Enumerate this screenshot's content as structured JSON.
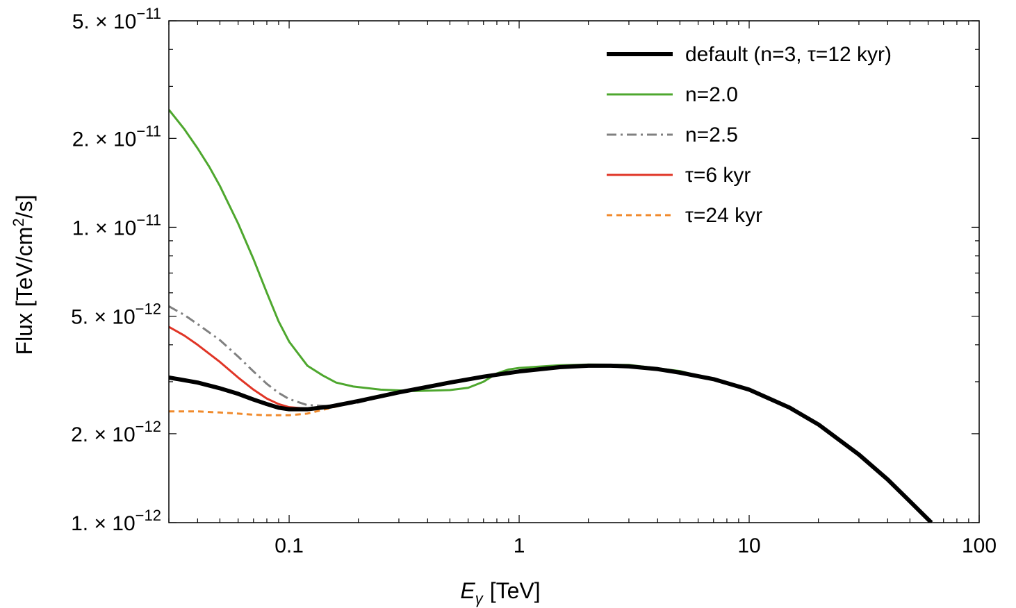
{
  "chart_data": {
    "type": "line",
    "title": "",
    "xscale": "log",
    "yscale": "log",
    "xlabel": {
      "main": "E",
      "sub": "γ",
      "unit": "[TeV]"
    },
    "ylabel": {
      "pre": "Flux [TeV/cm",
      "sup": "2",
      "post": "/s]"
    },
    "xlim": [
      0.03,
      100
    ],
    "ylim": [
      1e-12,
      5e-11
    ],
    "x_ticks": [
      {
        "value": 0.1,
        "label": "0.1"
      },
      {
        "value": 1,
        "label": "1"
      },
      {
        "value": 10,
        "label": "10"
      },
      {
        "value": 100,
        "label": "100"
      }
    ],
    "y_ticks": [
      {
        "value": 1e-12,
        "mantissa": "1.",
        "times": "×",
        "base": "10",
        "exp": "−12"
      },
      {
        "value": 2e-12,
        "mantissa": "2.",
        "times": "×",
        "base": "10",
        "exp": "−12"
      },
      {
        "value": 5e-12,
        "mantissa": "5.",
        "times": "×",
        "base": "10",
        "exp": "−12"
      },
      {
        "value": 1e-11,
        "mantissa": "1.",
        "times": "×",
        "base": "10",
        "exp": "−11"
      },
      {
        "value": 2e-11,
        "mantissa": "2.",
        "times": "×",
        "base": "10",
        "exp": "−11"
      },
      {
        "value": 5e-11,
        "mantissa": "5.",
        "times": "×",
        "base": "10",
        "exp": "−11"
      }
    ],
    "legend_position": "top-right",
    "series": [
      {
        "name": "default (n=3, τ=12 kyr)",
        "color": "#000000",
        "style": "solid-thick",
        "x": [
          0.03,
          0.04,
          0.05,
          0.06,
          0.07,
          0.08,
          0.09,
          0.1,
          0.12,
          0.15,
          0.2,
          0.3,
          0.5,
          0.7,
          1,
          1.5,
          2,
          2.5,
          3,
          4,
          5,
          7,
          10,
          15,
          20,
          30,
          40,
          50,
          62
        ],
        "y": [
          3.1e-12,
          2.98e-12,
          2.85e-12,
          2.73e-12,
          2.61e-12,
          2.52e-12,
          2.45e-12,
          2.42e-12,
          2.42e-12,
          2.47e-12,
          2.58e-12,
          2.76e-12,
          2.98e-12,
          3.12e-12,
          3.25e-12,
          3.36e-12,
          3.4e-12,
          3.4e-12,
          3.38e-12,
          3.31e-12,
          3.22e-12,
          3.06e-12,
          2.82e-12,
          2.45e-12,
          2.15e-12,
          1.7e-12,
          1.4e-12,
          1.18e-12,
          1e-12
        ]
      },
      {
        "name": "n=2.0",
        "color": "#4ea72e",
        "style": "solid",
        "x": [
          0.03,
          0.035,
          0.04,
          0.045,
          0.05,
          0.06,
          0.07,
          0.08,
          0.09,
          0.1,
          0.12,
          0.14,
          0.16,
          0.19,
          0.25,
          0.35,
          0.5,
          0.6,
          0.7,
          0.8,
          0.9,
          1,
          1.5,
          2,
          3,
          5,
          10
        ],
        "y": [
          2.5e-11,
          2.15e-11,
          1.85e-11,
          1.6e-11,
          1.38e-11,
          1.03e-11,
          7.8e-12,
          6e-12,
          4.8e-12,
          4.1e-12,
          3.4e-12,
          3.15e-12,
          2.98e-12,
          2.89e-12,
          2.82e-12,
          2.79e-12,
          2.81e-12,
          2.86e-12,
          3e-12,
          3.2e-12,
          3.3e-12,
          3.34e-12,
          3.41e-12,
          3.43e-12,
          3.42e-12,
          3.26e-12,
          2.84e-12
        ]
      },
      {
        "name": "n=2.5",
        "color": "#808080",
        "style": "dash-dot",
        "x": [
          0.03,
          0.035,
          0.04,
          0.05,
          0.06,
          0.07,
          0.08,
          0.09,
          0.1,
          0.12,
          0.15,
          0.2,
          0.3,
          0.5,
          0.7,
          1
        ],
        "y": [
          5.4e-12,
          5.05e-12,
          4.7e-12,
          4.15e-12,
          3.65e-12,
          3.25e-12,
          2.95e-12,
          2.75e-12,
          2.62e-12,
          2.5e-12,
          2.48e-12,
          2.55e-12,
          2.76e-12,
          2.98e-12,
          3.12e-12,
          3.25e-12
        ]
      },
      {
        "name": "τ=6 kyr",
        "color": "#e03526",
        "style": "solid",
        "x": [
          0.03,
          0.035,
          0.04,
          0.05,
          0.06,
          0.07,
          0.08,
          0.09,
          0.1,
          0.12,
          0.15,
          0.2,
          0.3
        ],
        "y": [
          4.6e-12,
          4.3e-12,
          4e-12,
          3.5e-12,
          3.1e-12,
          2.82e-12,
          2.63e-12,
          2.52e-12,
          2.46e-12,
          2.43e-12,
          2.47e-12,
          2.58e-12,
          2.76e-12
        ]
      },
      {
        "name": "τ=24 kyr",
        "color": "#f08a2c",
        "style": "dashed",
        "x": [
          0.03,
          0.04,
          0.05,
          0.06,
          0.07,
          0.08,
          0.09,
          0.1,
          0.12,
          0.15,
          0.2
        ],
        "y": [
          2.38e-12,
          2.38e-12,
          2.36e-12,
          2.34e-12,
          2.32e-12,
          2.31e-12,
          2.31e-12,
          2.31e-12,
          2.34e-12,
          2.44e-12,
          2.58e-12
        ]
      }
    ]
  }
}
